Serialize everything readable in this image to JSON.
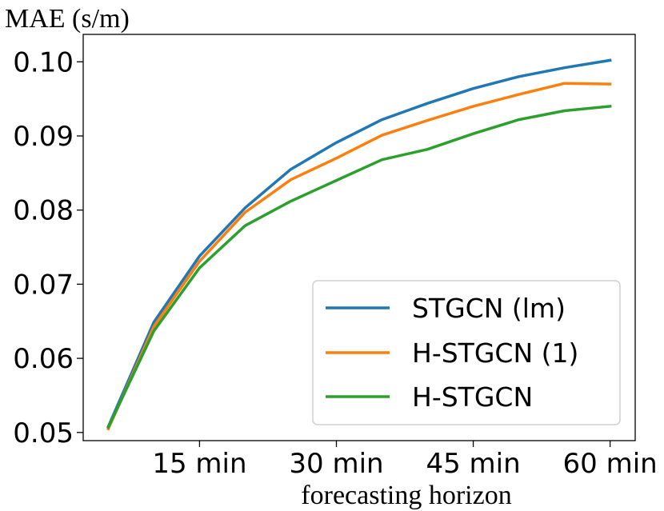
{
  "chart_data": {
    "type": "line",
    "title": "",
    "ylabel": "MAE (s/m)",
    "xlabel": "forecasting horizon",
    "x": [
      5,
      10,
      15,
      20,
      25,
      30,
      35,
      40,
      45,
      50,
      55,
      60
    ],
    "xticks": [
      15,
      30,
      45,
      60
    ],
    "xtick_labels": [
      "15 min",
      "30 min",
      "45 min",
      "60 min"
    ],
    "xlim": [
      2.25,
      62.75
    ],
    "ylim": [
      0.0489,
      0.1037
    ],
    "yticks": [
      0.05,
      0.06,
      0.07,
      0.08,
      0.09,
      0.1
    ],
    "ytick_labels": [
      "0.05",
      "0.06",
      "0.07",
      "0.08",
      "0.09",
      "0.10"
    ],
    "grid": false,
    "legend_position": "bottom-right",
    "series": [
      {
        "name": "STGCN (lm)",
        "label": "STGCN (lm)",
        "color": "#1f77b4",
        "values": [
          0.0508,
          0.0649,
          0.0738,
          0.0803,
          0.0855,
          0.0891,
          0.0922,
          0.0944,
          0.0964,
          0.098,
          0.0992,
          0.1002
        ]
      },
      {
        "name": "H-STGCN (1)",
        "label": "H-STGCN (1)",
        "color": "#ff7f0e",
        "values": [
          0.0505,
          0.0643,
          0.0731,
          0.0797,
          0.0841,
          0.087,
          0.0901,
          0.0921,
          0.094,
          0.0956,
          0.0971,
          0.097
        ]
      },
      {
        "name": "H-STGCN",
        "label": "H-STGCN",
        "color": "#2ca02c",
        "values": [
          0.0507,
          0.0637,
          0.0722,
          0.0779,
          0.0812,
          0.084,
          0.0868,
          0.0882,
          0.0903,
          0.0922,
          0.0934,
          0.094
        ]
      }
    ]
  }
}
